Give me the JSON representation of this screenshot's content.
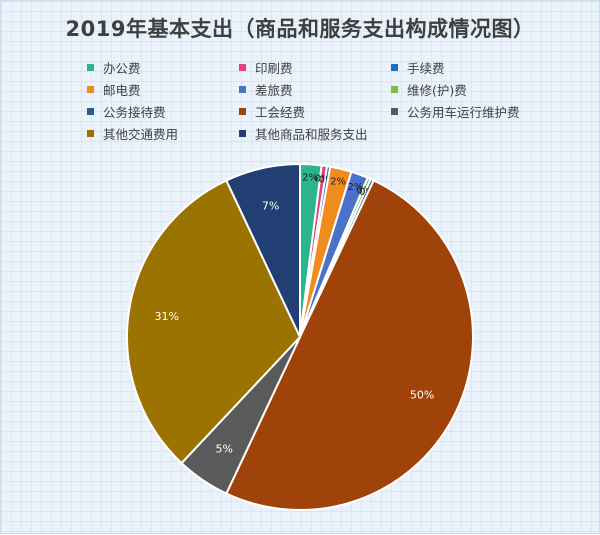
{
  "chart_data": {
    "type": "pie",
    "title": "2019年基本支出（商品和服务支出构成情况图）",
    "legend_position": "top",
    "slices": [
      {
        "name": "办公费",
        "value": 2,
        "label": "2%",
        "color": "#2cb48c"
      },
      {
        "name": "印刷费",
        "value": 0.5,
        "label": "0%",
        "color": "#e0437a"
      },
      {
        "name": "手续费",
        "value": 0.3,
        "label": "0%",
        "color": "#1f6fbf"
      },
      {
        "name": "邮电费",
        "value": 2,
        "label": "2%",
        "color": "#f08c1e"
      },
      {
        "name": "差旅费",
        "value": 1.6,
        "label": "2%",
        "color": "#4a72c8"
      },
      {
        "name": "维修(护)费",
        "value": 0.3,
        "label": "0%",
        "color": "#7fbf3f"
      },
      {
        "name": "公务接待费",
        "value": 0.3,
        "label": "0%",
        "color": "#2f5b8c"
      },
      {
        "name": "工会经费",
        "value": 50,
        "label": "50%",
        "color": "#a0430b"
      },
      {
        "name": "公务用车运行维护费",
        "value": 5,
        "label": "5%",
        "color": "#5a5a5a"
      },
      {
        "name": "其他交通费用",
        "value": 31,
        "label": "31%",
        "color": "#9a7300"
      },
      {
        "name": "其他商品和服务支出",
        "value": 7,
        "label": "7%",
        "color": "#223f73"
      }
    ]
  }
}
